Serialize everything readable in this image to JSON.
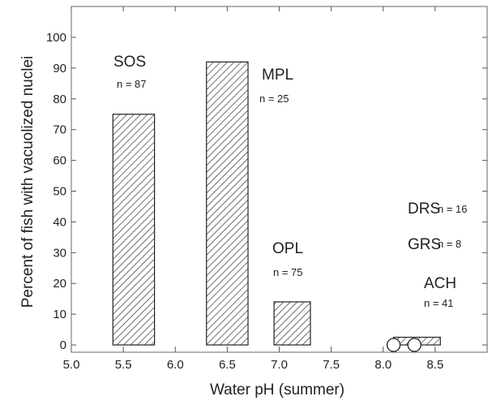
{
  "chart_data": {
    "type": "bar",
    "xlabel": "Water pH (summer)",
    "ylabel": "Percent of fish with vacuolized nuclei",
    "xlim": [
      5.0,
      9.0
    ],
    "ylim": [
      0,
      100
    ],
    "x_ticks": [
      "5.0",
      "5.5",
      "6.0",
      "6.5",
      "7.0",
      "7.5",
      "8.0",
      "8.5"
    ],
    "y_ticks": [
      "0",
      "10",
      "20",
      "30",
      "40",
      "50",
      "60",
      "70",
      "80",
      "90",
      "100"
    ],
    "grid": false,
    "bar_pattern": "diagonal-hatch",
    "bars": [
      {
        "site": "SOS",
        "n": "n = 87",
        "x_start": 5.4,
        "x_end": 5.8,
        "value": 75
      },
      {
        "site": "MPL",
        "n": "n = 25",
        "x_start": 6.3,
        "x_end": 6.7,
        "value": 92
      },
      {
        "site": "OPL",
        "n": "n = 75",
        "x_start": 6.95,
        "x_end": 7.3,
        "value": 14
      },
      {
        "site": "ACH",
        "n": "n = 41",
        "x_start": 8.1,
        "x_end": 8.55,
        "value": 2.5
      }
    ],
    "zero_value_sites": [
      {
        "site": "DRS",
        "n": "n = 16",
        "x": 8.1,
        "value": 0
      },
      {
        "site": "GRS",
        "n": "n = 8",
        "x": 8.3,
        "value": 0
      }
    ]
  }
}
